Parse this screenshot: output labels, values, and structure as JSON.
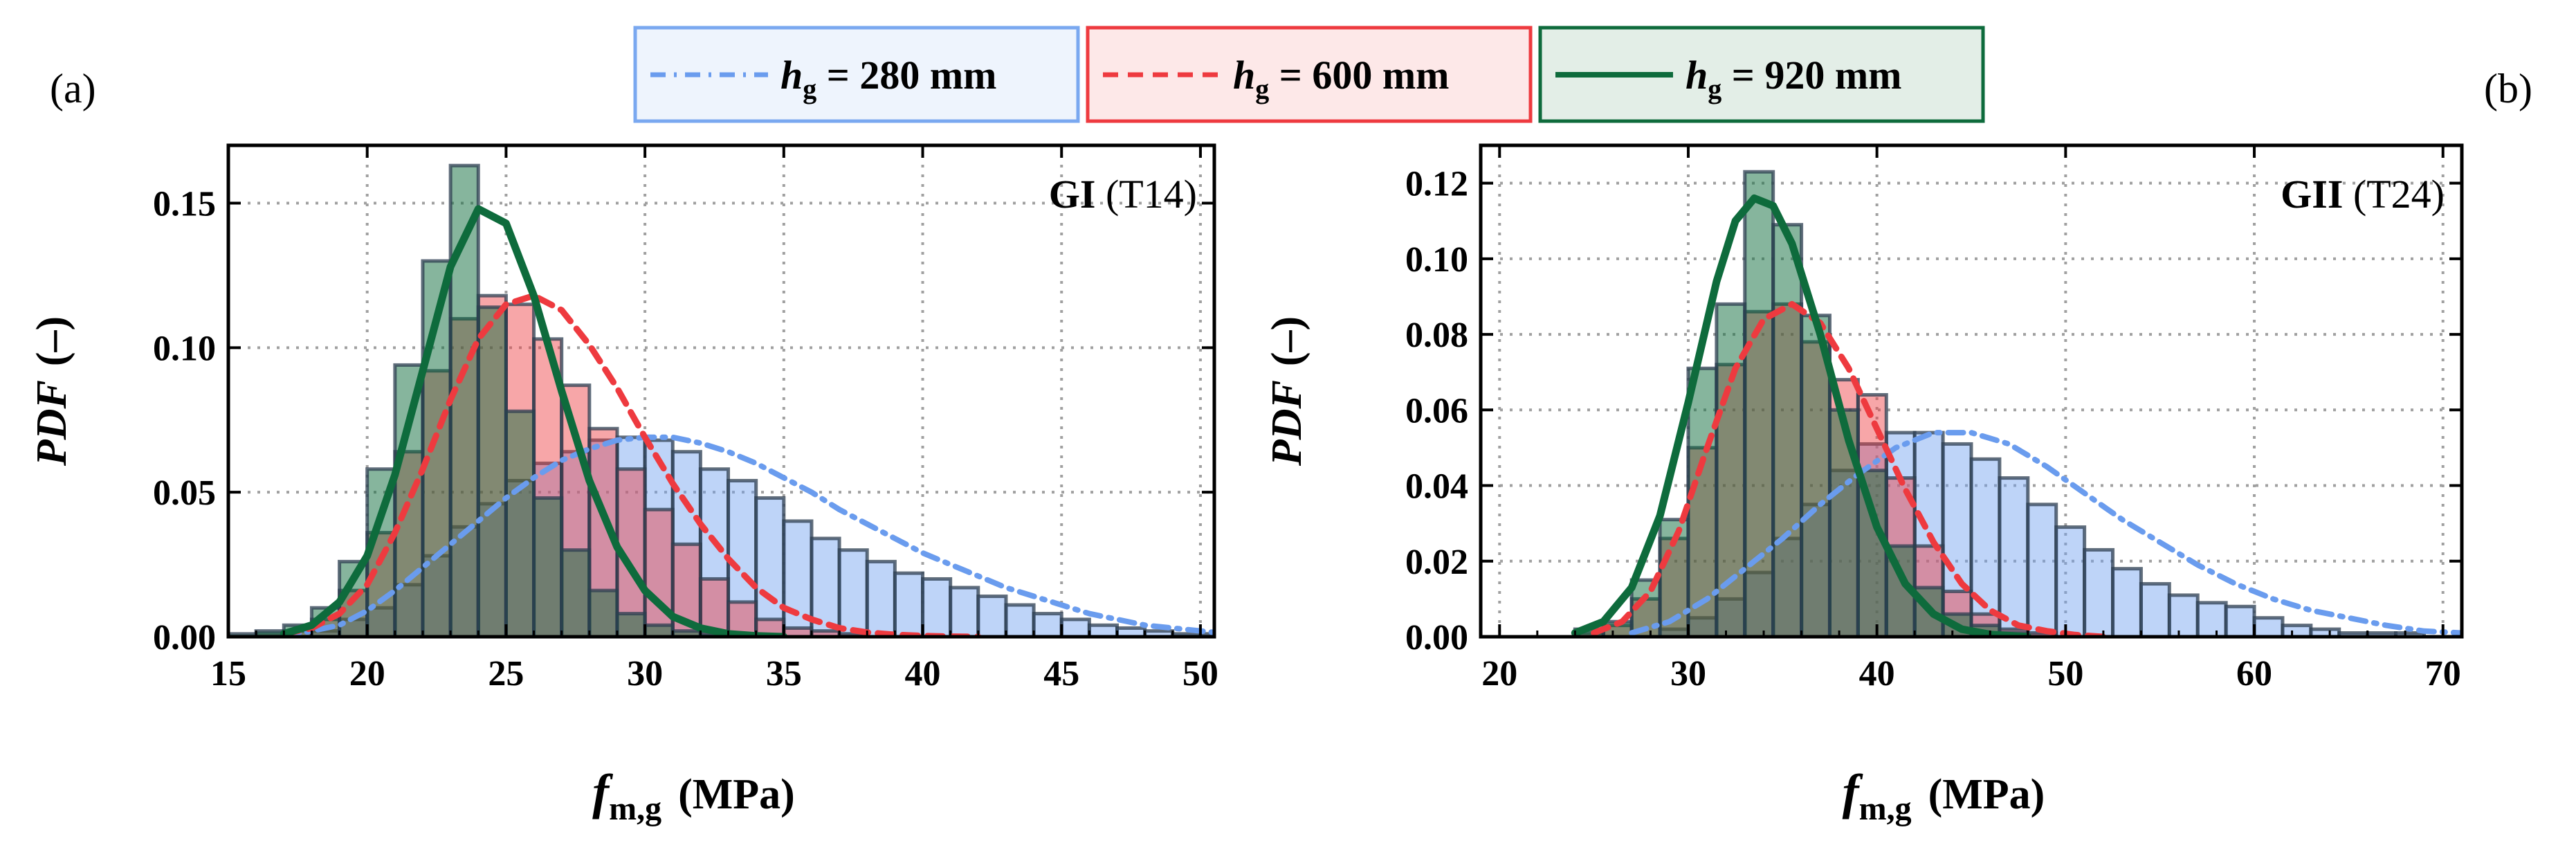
{
  "legend": {
    "entries": [
      {
        "label_var": "h",
        "label_sub": "g",
        "label_rest": " = 280 mm",
        "color": "#6a9cee",
        "bg": "#eef4fd",
        "border": "#7aa8f0",
        "dash": "dashdot"
      },
      {
        "label_var": "h",
        "label_sub": "g",
        "label_rest": " = 600 mm",
        "color": "#ee3a3f",
        "bg": "#fde8e8",
        "border": "#ee3a3f",
        "dash": "dashed"
      },
      {
        "label_var": "h",
        "label_sub": "g",
        "label_rest": " = 920 mm",
        "color": "#0e6b3c",
        "bg": "#e3eee7",
        "border": "#0e6b3c",
        "dash": "solid"
      }
    ]
  },
  "panels": {
    "a": {
      "letter": "(a)"
    },
    "b": {
      "letter": "(b)"
    }
  },
  "chart_data": [
    {
      "type": "bar",
      "panel": "(a)",
      "annotation_bold": "GI",
      "annotation_rest": " (T14)",
      "xlabel_var": "f",
      "xlabel_sub": "m,g",
      "xlabel_unit": "(MPa)",
      "ylabel_var": "PDF",
      "ylabel_unit": "(–)",
      "xlim": [
        15,
        50.5
      ],
      "ylim": [
        0,
        0.17
      ],
      "xticks": [
        15,
        20,
        25,
        30,
        35,
        40,
        45,
        50
      ],
      "yticks": [
        0.0,
        0.05,
        0.1,
        0.15
      ],
      "ytick_labels": [
        "0.00",
        "0.05",
        "0.10",
        "0.15"
      ],
      "grid": true,
      "bin_width": 1,
      "bin_start": 15,
      "series": [
        {
          "name": "h_g = 280 mm",
          "hist": [
            0,
            0,
            0,
            0.002,
            0.006,
            0.01,
            0.018,
            0.028,
            0.038,
            0.046,
            0.054,
            0.06,
            0.064,
            0.068,
            0.069,
            0.068,
            0.064,
            0.058,
            0.054,
            0.048,
            0.04,
            0.034,
            0.03,
            0.026,
            0.022,
            0.02,
            0.017,
            0.014,
            0.011,
            0.008,
            0.006,
            0.004,
            0.003,
            0.002,
            0.001,
            0.001
          ],
          "curve": [
            [
              17,
              0
            ],
            [
              18,
              0.002
            ],
            [
              19,
              0.004
            ],
            [
              20,
              0.009
            ],
            [
              21,
              0.016
            ],
            [
              22,
              0.024
            ],
            [
              23,
              0.032
            ],
            [
              24,
              0.04
            ],
            [
              25,
              0.048
            ],
            [
              26,
              0.055
            ],
            [
              27,
              0.061
            ],
            [
              28,
              0.065
            ],
            [
              29,
              0.068
            ],
            [
              30,
              0.069
            ],
            [
              31,
              0.069
            ],
            [
              32,
              0.067
            ],
            [
              33,
              0.064
            ],
            [
              34,
              0.06
            ],
            [
              35,
              0.055
            ],
            [
              36,
              0.05
            ],
            [
              37,
              0.044
            ],
            [
              38,
              0.039
            ],
            [
              39,
              0.034
            ],
            [
              40,
              0.029
            ],
            [
              41,
              0.025
            ],
            [
              42,
              0.021
            ],
            [
              43,
              0.017
            ],
            [
              44,
              0.014
            ],
            [
              45,
              0.011
            ],
            [
              46,
              0.008
            ],
            [
              47,
              0.006
            ],
            [
              48,
              0.004
            ],
            [
              49,
              0.003
            ],
            [
              50,
              0.002
            ],
            [
              50.5,
              0.0015
            ]
          ]
        },
        {
          "name": "h_g = 600 mm",
          "hist": [
            0,
            0.001,
            0.002,
            0.006,
            0.016,
            0.036,
            0.064,
            0.092,
            0.11,
            0.118,
            0.115,
            0.103,
            0.087,
            0.072,
            0.058,
            0.044,
            0.032,
            0.02,
            0.012,
            0.006,
            0.003,
            0.002,
            0.001,
            0,
            0,
            0,
            0,
            0,
            0,
            0,
            0,
            0,
            0,
            0,
            0,
            0
          ],
          "curve": [
            [
              17,
              0.001
            ],
            [
              18,
              0.003
            ],
            [
              19,
              0.008
            ],
            [
              20,
              0.018
            ],
            [
              21,
              0.036
            ],
            [
              22,
              0.058
            ],
            [
              23,
              0.082
            ],
            [
              24,
              0.103
            ],
            [
              25,
              0.115
            ],
            [
              26,
              0.118
            ],
            [
              27,
              0.113
            ],
            [
              28,
              0.101
            ],
            [
              29,
              0.086
            ],
            [
              30,
              0.069
            ],
            [
              31,
              0.053
            ],
            [
              32,
              0.039
            ],
            [
              33,
              0.027
            ],
            [
              34,
              0.017
            ],
            [
              35,
              0.01
            ],
            [
              36,
              0.006
            ],
            [
              37,
              0.003
            ],
            [
              38,
              0.0015
            ],
            [
              39,
              0.0007
            ],
            [
              40,
              0.0003
            ],
            [
              41,
              0.0001
            ],
            [
              42,
              0
            ]
          ]
        },
        {
          "name": "h_g = 920 mm",
          "hist": [
            0.001,
            0.002,
            0.004,
            0.01,
            0.026,
            0.058,
            0.094,
            0.13,
            0.163,
            0.114,
            0.078,
            0.048,
            0.03,
            0.016,
            0.008,
            0.004,
            0.002,
            0.001,
            0,
            0,
            0,
            0,
            0,
            0,
            0,
            0,
            0,
            0,
            0,
            0,
            0,
            0,
            0,
            0,
            0,
            0
          ],
          "curve": [
            [
              17,
              0.001
            ],
            [
              18,
              0.004
            ],
            [
              19,
              0.012
            ],
            [
              20,
              0.028
            ],
            [
              21,
              0.056
            ],
            [
              22,
              0.092
            ],
            [
              23,
              0.128
            ],
            [
              24,
              0.148
            ],
            [
              25,
              0.143
            ],
            [
              26,
              0.118
            ],
            [
              27,
              0.085
            ],
            [
              28,
              0.054
            ],
            [
              29,
              0.031
            ],
            [
              30,
              0.016
            ],
            [
              31,
              0.007
            ],
            [
              32,
              0.003
            ],
            [
              33,
              0.001
            ],
            [
              34,
              0.0003
            ],
            [
              35,
              0
            ]
          ]
        }
      ]
    },
    {
      "type": "bar",
      "panel": "(b)",
      "annotation_bold": "GII",
      "annotation_rest": " (T24)",
      "xlabel_var": "f",
      "xlabel_sub": "m,g",
      "xlabel_unit": "(MPa)",
      "ylabel_var": "PDF",
      "ylabel_unit": "(–)",
      "xlim": [
        19,
        71
      ],
      "ylim": [
        0,
        0.13
      ],
      "xticks": [
        20,
        30,
        40,
        50,
        60,
        70
      ],
      "yticks": [
        0.0,
        0.02,
        0.04,
        0.06,
        0.08,
        0.1,
        0.12
      ],
      "ytick_labels": [
        "0.00",
        "0.02",
        "0.04",
        "0.06",
        "0.08",
        "0.10",
        "0.12"
      ],
      "grid": true,
      "bin_width": 1.5,
      "bin_start": 24,
      "series": [
        {
          "name": "h_g = 280 mm",
          "hist": [
            0,
            0,
            0,
            0.002,
            0.005,
            0.01,
            0.017,
            0.026,
            0.035,
            0.044,
            0.051,
            0.054,
            0.054,
            0.051,
            0.047,
            0.042,
            0.035,
            0.029,
            0.023,
            0.018,
            0.014,
            0.011,
            0.009,
            0.008,
            0.005,
            0.003,
            0.002,
            0.001,
            0.001,
            0.001
          ],
          "curve": [
            [
              27,
              0.001
            ],
            [
              29,
              0.004
            ],
            [
              31,
              0.01
            ],
            [
              33,
              0.018
            ],
            [
              35,
              0.026
            ],
            [
              37,
              0.035
            ],
            [
              39,
              0.043
            ],
            [
              41,
              0.05
            ],
            [
              43,
              0.054
            ],
            [
              45,
              0.054
            ],
            [
              47,
              0.051
            ],
            [
              49,
              0.045
            ],
            [
              51,
              0.038
            ],
            [
              53,
              0.031
            ],
            [
              55,
              0.025
            ],
            [
              57,
              0.019
            ],
            [
              59,
              0.014
            ],
            [
              61,
              0.01
            ],
            [
              63,
              0.007
            ],
            [
              65,
              0.005
            ],
            [
              67,
              0.003
            ],
            [
              69,
              0.0015
            ],
            [
              71,
              0.001
            ]
          ]
        },
        {
          "name": "h_g = 600 mm",
          "hist": [
            0.001,
            0.003,
            0.01,
            0.026,
            0.05,
            0.072,
            0.086,
            0.088,
            0.078,
            0.068,
            0.064,
            0.042,
            0.024,
            0.012,
            0.006,
            0.002,
            0.001,
            0,
            0,
            0,
            0,
            0,
            0,
            0,
            0,
            0,
            0,
            0,
            0,
            0
          ],
          "curve": [
            [
              25,
              0.001
            ],
            [
              26.5,
              0.004
            ],
            [
              28,
              0.012
            ],
            [
              29.5,
              0.028
            ],
            [
              31,
              0.05
            ],
            [
              32.5,
              0.071
            ],
            [
              34,
              0.084
            ],
            [
              35.5,
              0.088
            ],
            [
              37,
              0.083
            ],
            [
              38.5,
              0.071
            ],
            [
              40,
              0.055
            ],
            [
              41.5,
              0.039
            ],
            [
              43,
              0.025
            ],
            [
              44.5,
              0.014
            ],
            [
              46,
              0.007
            ],
            [
              47.5,
              0.003
            ],
            [
              49,
              0.0015
            ],
            [
              50.5,
              0.0005
            ],
            [
              52,
              0
            ]
          ]
        },
        {
          "name": "h_g = 920 mm",
          "hist": [
            0.002,
            0.004,
            0.015,
            0.031,
            0.071,
            0.088,
            0.123,
            0.109,
            0.085,
            0.06,
            0.044,
            0.024,
            0.013,
            0.006,
            0.003,
            0.001,
            0,
            0,
            0,
            0,
            0,
            0,
            0,
            0,
            0,
            0,
            0,
            0,
            0,
            0
          ],
          "curve": [
            [
              24,
              0.001
            ],
            [
              25.5,
              0.004
            ],
            [
              27,
              0.013
            ],
            [
              28.5,
              0.032
            ],
            [
              30,
              0.062
            ],
            [
              31.5,
              0.094
            ],
            [
              32.5,
              0.11
            ],
            [
              33.5,
              0.116
            ],
            [
              34.5,
              0.114
            ],
            [
              35.5,
              0.104
            ],
            [
              37,
              0.08
            ],
            [
              38.5,
              0.052
            ],
            [
              40,
              0.029
            ],
            [
              41.5,
              0.014
            ],
            [
              43,
              0.006
            ],
            [
              44.5,
              0.002
            ],
            [
              46,
              0.0006
            ],
            [
              48,
              0
            ]
          ]
        }
      ]
    }
  ]
}
